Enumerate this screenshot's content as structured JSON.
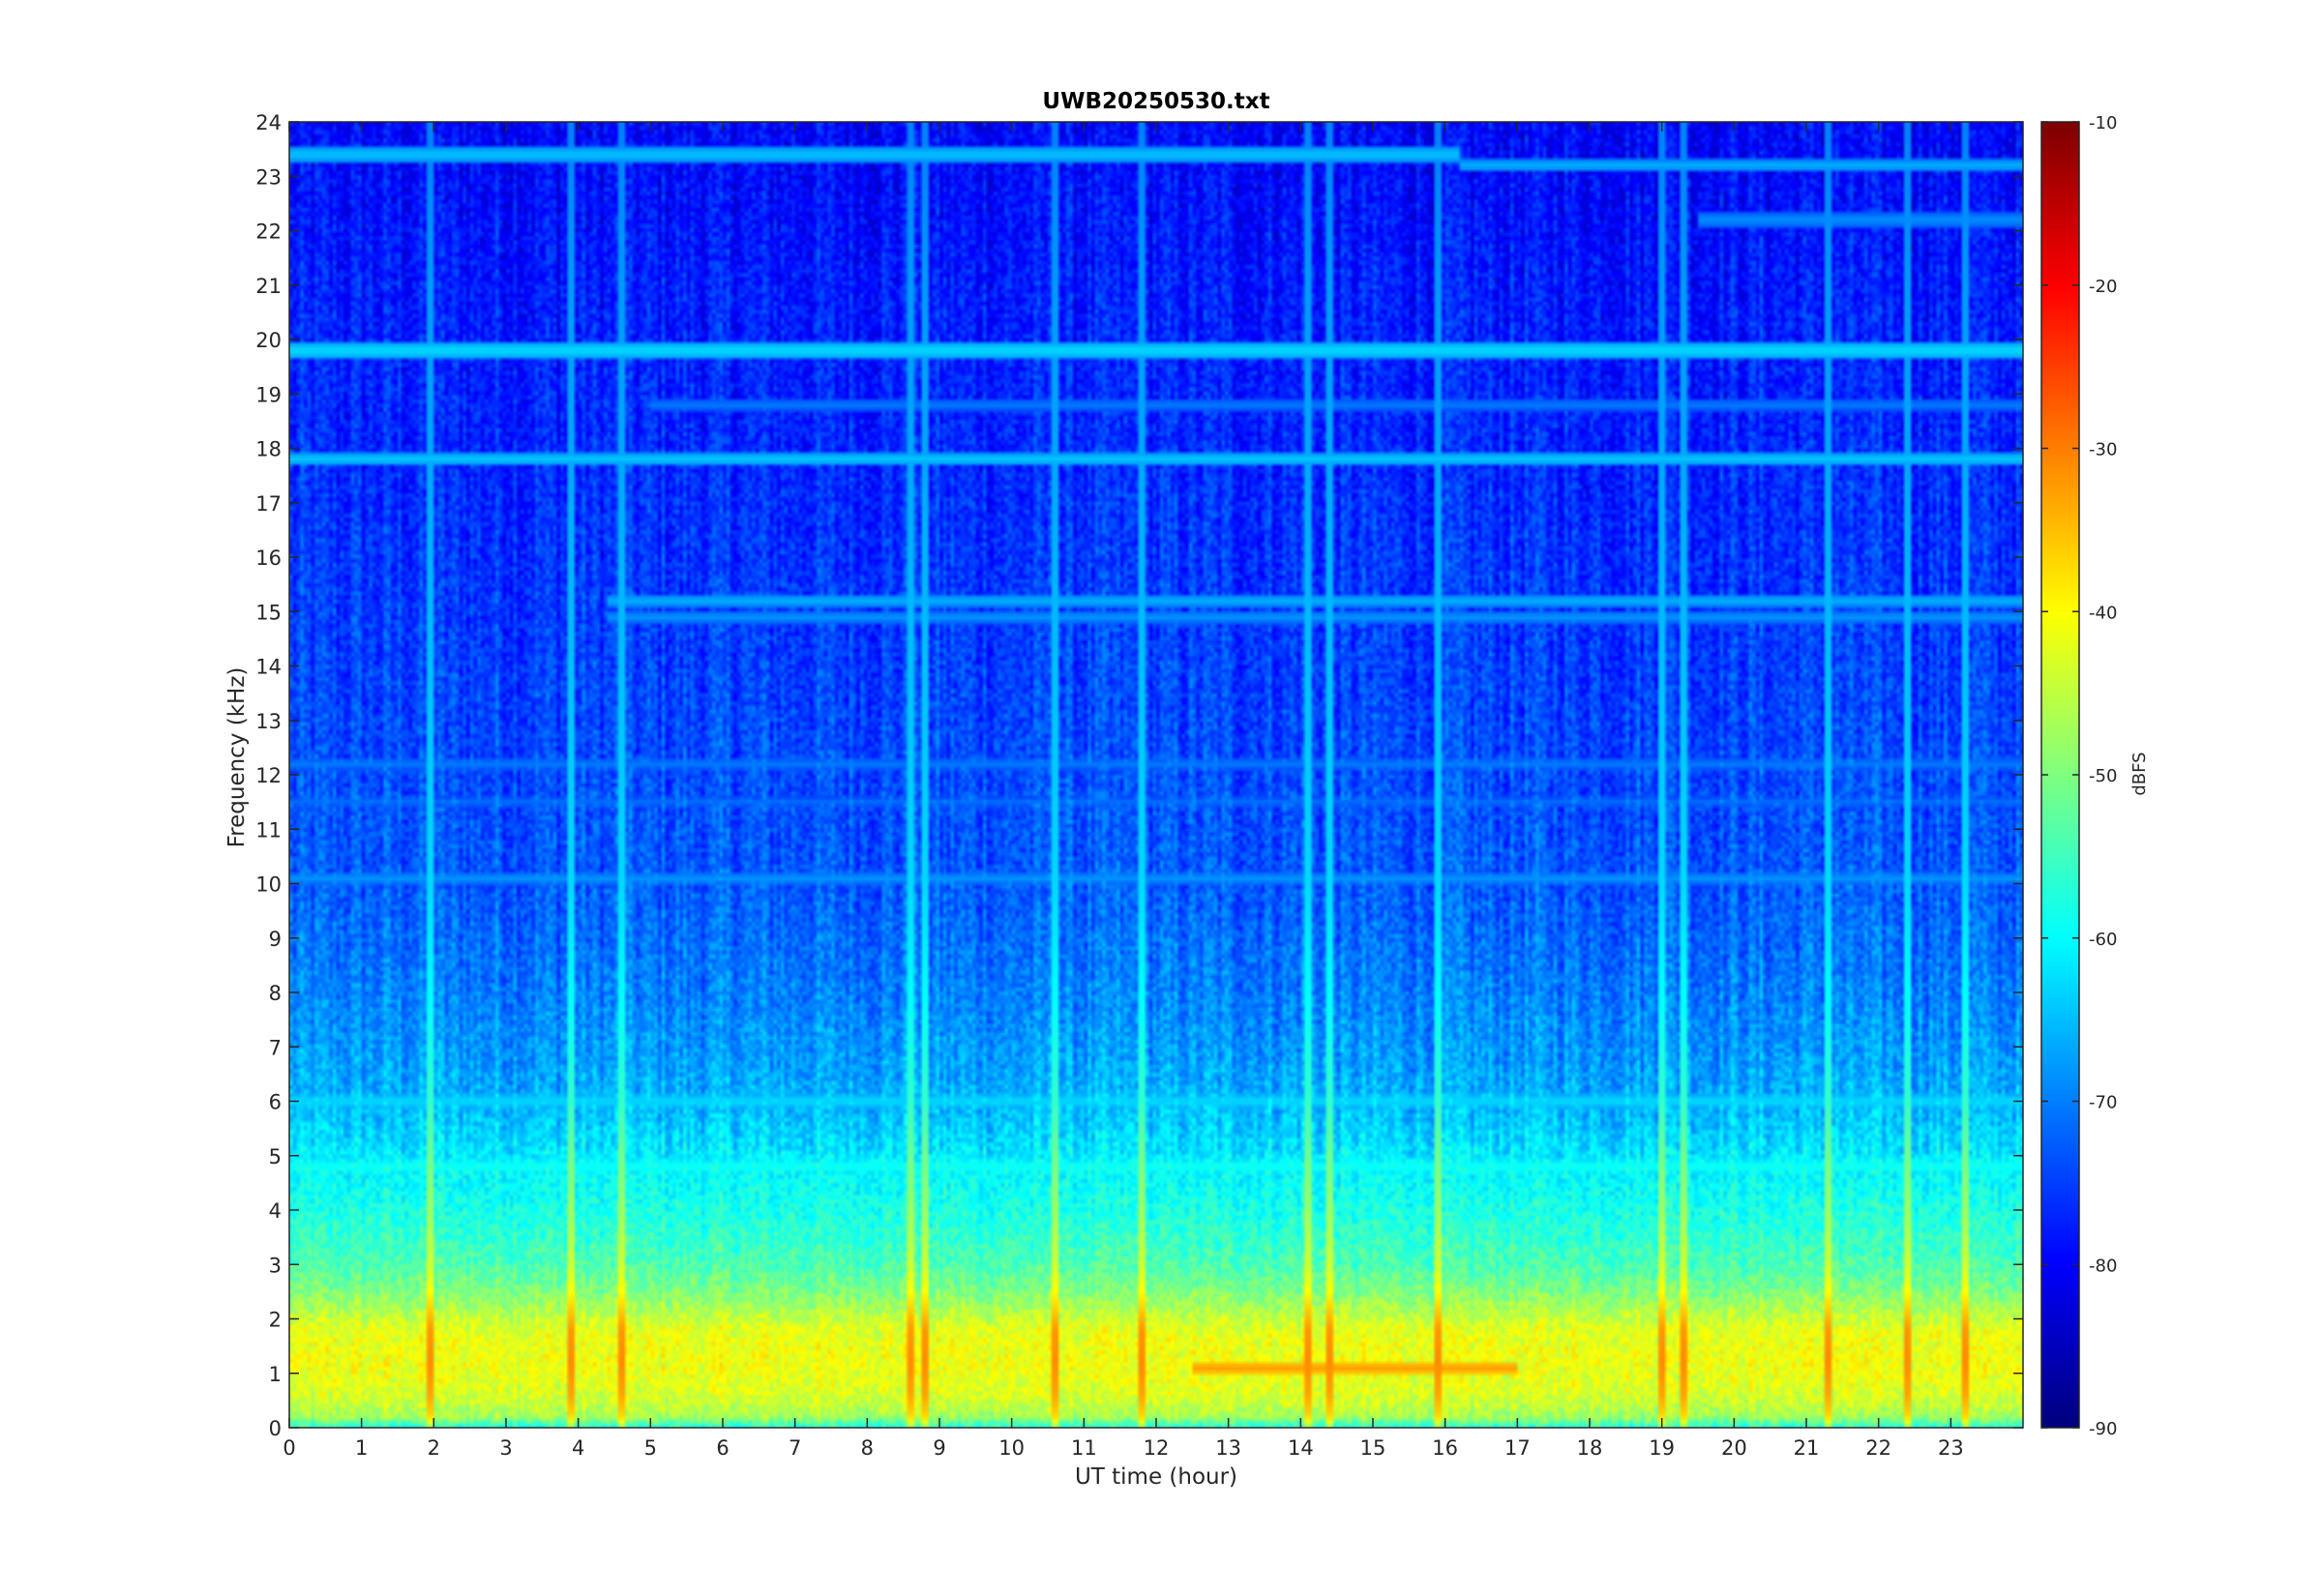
{
  "chart_data": {
    "type": "heatmap",
    "title": "UWB20250530.txt",
    "xlabel": "UT time (hour)",
    "ylabel": "Frequency (kHz)",
    "xlim": [
      0,
      24
    ],
    "ylim": [
      0,
      24
    ],
    "x_ticks": [
      0,
      1,
      2,
      3,
      4,
      5,
      6,
      7,
      8,
      9,
      10,
      11,
      12,
      13,
      14,
      15,
      16,
      17,
      18,
      19,
      20,
      21,
      22,
      23
    ],
    "y_ticks": [
      0,
      1,
      2,
      3,
      4,
      5,
      6,
      7,
      8,
      9,
      10,
      11,
      12,
      13,
      14,
      15,
      16,
      17,
      18,
      19,
      20,
      21,
      22,
      23,
      24
    ],
    "colorbar": {
      "label": "dBFS",
      "colormap": "jet",
      "range": [
        -90,
        -10
      ],
      "ticks": [
        -10,
        -20,
        -30,
        -40,
        -50,
        -60,
        -70,
        -80,
        -90
      ]
    },
    "background_level_profile": [
      {
        "freq_khz": 0.0,
        "dbfs": -58
      },
      {
        "freq_khz": 0.2,
        "dbfs": -47
      },
      {
        "freq_khz": 0.6,
        "dbfs": -43
      },
      {
        "freq_khz": 1.2,
        "dbfs": -41
      },
      {
        "freq_khz": 1.8,
        "dbfs": -42
      },
      {
        "freq_khz": 2.5,
        "dbfs": -50
      },
      {
        "freq_khz": 3.0,
        "dbfs": -54
      },
      {
        "freq_khz": 4.0,
        "dbfs": -58
      },
      {
        "freq_khz": 4.9,
        "dbfs": -61
      },
      {
        "freq_khz": 6.0,
        "dbfs": -66
      },
      {
        "freq_khz": 8.0,
        "dbfs": -70
      },
      {
        "freq_khz": 10.0,
        "dbfs": -73
      },
      {
        "freq_khz": 14.0,
        "dbfs": -75
      },
      {
        "freq_khz": 18.0,
        "dbfs": -77
      },
      {
        "freq_khz": 21.0,
        "dbfs": -78
      },
      {
        "freq_khz": 24.0,
        "dbfs": -80
      }
    ],
    "persistent_tones": [
      {
        "freq_khz": 19.8,
        "dbfs": -62,
        "t_start": 0,
        "t_end": 24
      },
      {
        "freq_khz": 17.8,
        "dbfs": -64,
        "t_start": 0,
        "t_end": 24
      },
      {
        "freq_khz": 23.4,
        "dbfs": -64,
        "t_start": 0,
        "t_end": 16.2
      },
      {
        "freq_khz": 23.2,
        "dbfs": -66,
        "t_start": 16.2,
        "t_end": 24
      },
      {
        "freq_khz": 22.2,
        "dbfs": -68,
        "t_start": 19.5,
        "t_end": 24
      },
      {
        "freq_khz": 15.2,
        "dbfs": -66,
        "t_start": 4.4,
        "t_end": 24
      },
      {
        "freq_khz": 14.9,
        "dbfs": -68,
        "t_start": 4.4,
        "t_end": 24
      },
      {
        "freq_khz": 10.1,
        "dbfs": -68,
        "t_start": 0,
        "t_end": 24
      },
      {
        "freq_khz": 12.2,
        "dbfs": -70,
        "t_start": 0,
        "t_end": 24
      },
      {
        "freq_khz": 11.5,
        "dbfs": -71,
        "t_start": 0,
        "t_end": 24
      },
      {
        "freq_khz": 18.8,
        "dbfs": -70,
        "t_start": 5,
        "t_end": 24
      },
      {
        "freq_khz": 6.0,
        "dbfs": -62,
        "t_start": 0,
        "t_end": 24
      },
      {
        "freq_khz": 4.8,
        "dbfs": -58,
        "t_start": 0,
        "t_end": 24
      },
      {
        "freq_khz": 1.1,
        "dbfs": -32,
        "t_start": 12.5,
        "t_end": 17
      }
    ],
    "impulsive_events_hours": [
      1.95,
      3.9,
      4.6,
      8.6,
      8.8,
      10.6,
      11.8,
      14.1,
      14.4,
      15.9,
      19.0,
      19.3,
      21.3,
      22.4,
      23.2
    ]
  }
}
